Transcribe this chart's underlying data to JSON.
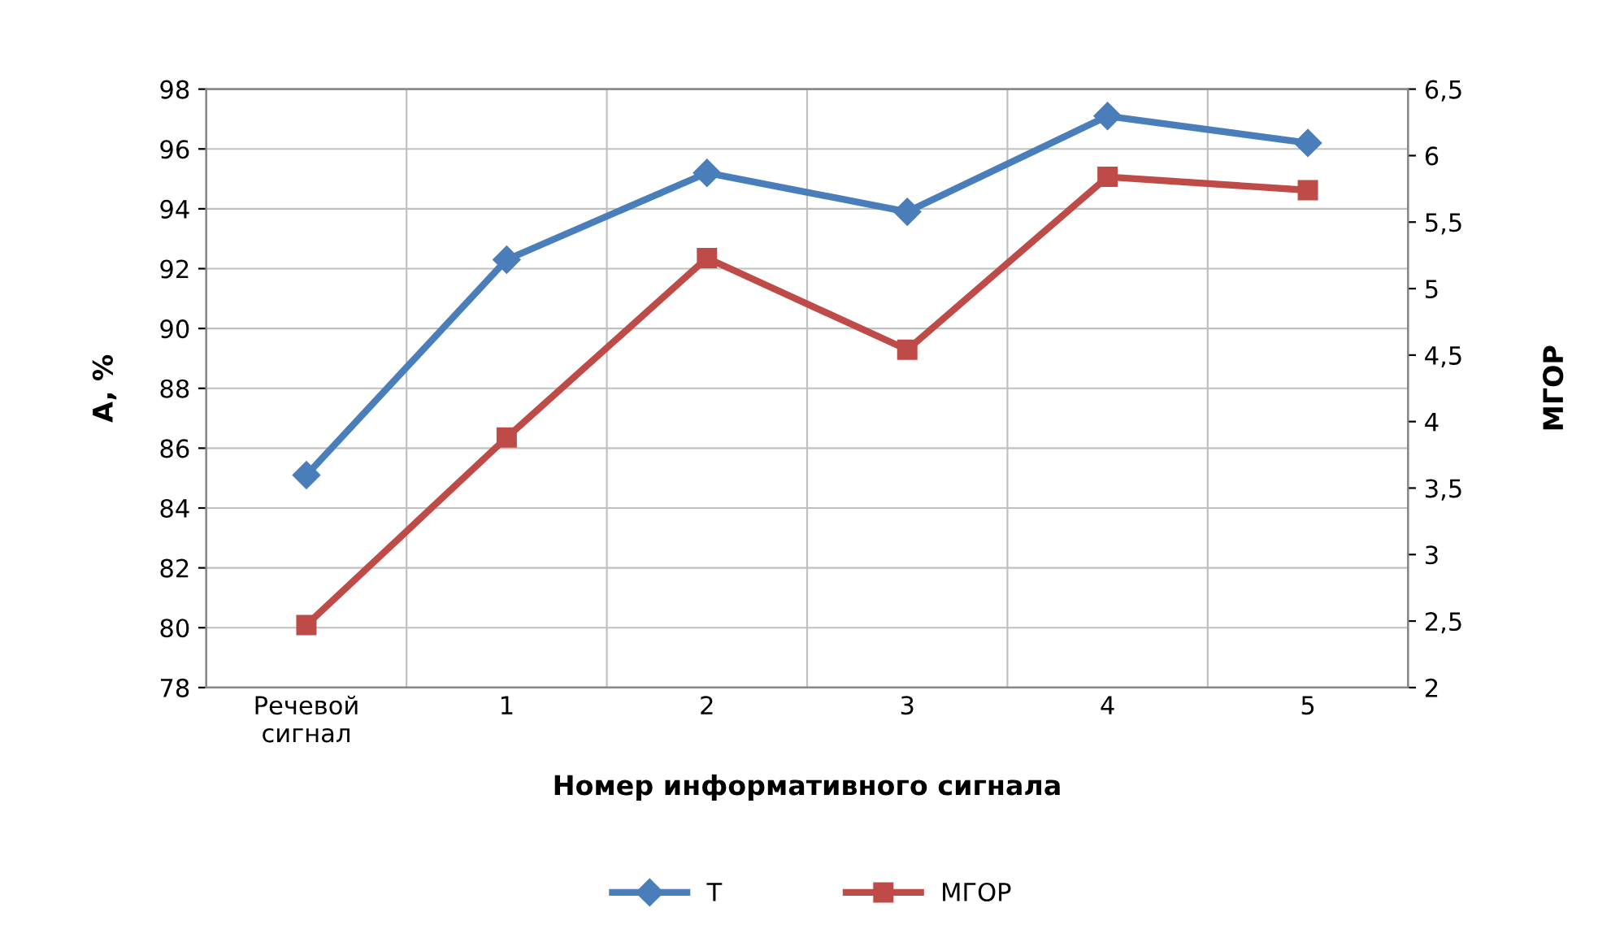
{
  "chart_data": {
    "type": "line",
    "xlabel": "Номер информативного сигнала",
    "ylabel": "A, %",
    "y2label": "МГОР",
    "categories": [
      "Речевой\nсигнал",
      "1",
      "2",
      "3",
      "4",
      "5"
    ],
    "series": [
      {
        "name": "T",
        "color": "#4a7ebb",
        "marker": "diamond",
        "values": [
          85.1,
          92.3,
          95.2,
          93.9,
          97.1,
          96.2
        ]
      },
      {
        "name": "МГОР",
        "color": "#be4b48",
        "marker": "square",
        "axis": "y2",
        "values": [
          2.47,
          3.88,
          5.23,
          4.54,
          5.84,
          5.74
        ]
      }
    ],
    "ylim": [
      78,
      98
    ],
    "yticks": [
      78,
      80,
      82,
      84,
      86,
      88,
      90,
      92,
      94,
      96,
      98
    ],
    "y2lim": [
      2,
      6.5
    ],
    "y2ticks": [
      2,
      {
        "value": 2.5,
        "label": "2,5"
      },
      3,
      {
        "value": 3.5,
        "label": "3,5"
      },
      4,
      {
        "value": 4.5,
        "label": "4,5"
      },
      5,
      {
        "value": 5.5,
        "label": "5,5"
      },
      6,
      {
        "value": 6.5,
        "label": "6,5"
      }
    ],
    "grid": true,
    "legend": "bottom",
    "line_style": "solid"
  }
}
